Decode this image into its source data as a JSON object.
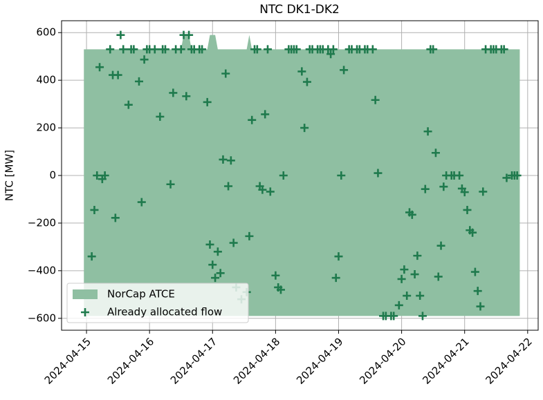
{
  "chart_data": {
    "type": "area",
    "title": "NTC DK1-DK2",
    "ylabel": "NTC [MW]",
    "xlim": [
      "2024-04-14 14:30",
      "2024-04-22 04:00"
    ],
    "xticks": [
      "2024-04-15",
      "2024-04-16",
      "2024-04-17",
      "2024-04-18",
      "2024-04-19",
      "2024-04-20",
      "2024-04-21",
      "2024-04-22"
    ],
    "ylim": [
      -650,
      650
    ],
    "yticks": [
      {
        "value": -600,
        "label": "−600"
      },
      {
        "value": -400,
        "label": "−400"
      },
      {
        "value": -200,
        "label": "−200"
      },
      0,
      200,
      400,
      600
    ],
    "grid": true,
    "legend": "lower left",
    "series": [
      {
        "name": "NorCap ATCE",
        "type": "area",
        "color": "#8fbfa2",
        "x": [
          "2024-04-14 23:00",
          "2024-04-16 12:00",
          "2024-04-16 13:00",
          "2024-04-16 15:00",
          "2024-04-16 16:00",
          "2024-04-16 22:00",
          "2024-04-16 23:00",
          "2024-04-17 01:00",
          "2024-04-17 02:00",
          "2024-04-17 13:00",
          "2024-04-17 14:00",
          "2024-04-17 15:00",
          "2024-04-21 21:00"
        ],
        "upper": [
          530,
          530,
          590,
          590,
          530,
          530,
          590,
          590,
          530,
          530,
          590,
          530,
          530
        ],
        "lower": [
          -590,
          -590,
          -590,
          -590,
          -590,
          -590,
          -590,
          -590,
          -590,
          -590,
          -590,
          -590,
          -590
        ]
      },
      {
        "name": "Already allocated flow",
        "type": "scatter",
        "color": "#1f7a4d",
        "x": [
          "2024-04-15 02:00",
          "2024-04-15 03:00",
          "2024-04-15 04:00",
          "2024-04-15 05:00",
          "2024-04-15 06:00",
          "2024-04-15 07:00",
          "2024-04-15 09:00",
          "2024-04-15 10:00",
          "2024-04-15 11:00",
          "2024-04-15 12:00",
          "2024-04-15 13:00",
          "2024-04-15 14:00",
          "2024-04-15 16:00",
          "2024-04-15 17:00",
          "2024-04-15 18:00",
          "2024-04-15 20:00",
          "2024-04-15 21:00",
          "2024-04-15 22:00",
          "2024-04-15 23:00",
          "2024-04-16 00:00",
          "2024-04-16 02:00",
          "2024-04-16 04:00",
          "2024-04-16 05:00",
          "2024-04-16 06:00",
          "2024-04-16 08:00",
          "2024-04-16 09:00",
          "2024-04-16 10:00",
          "2024-04-16 12:00",
          "2024-04-16 13:00",
          "2024-04-16 14:00",
          "2024-04-16 15:00",
          "2024-04-16 16:00",
          "2024-04-16 17:00",
          "2024-04-16 19:00",
          "2024-04-16 20:00",
          "2024-04-16 22:00",
          "2024-04-16 23:00",
          "2024-04-17 00:00",
          "2024-04-17 01:00",
          "2024-04-17 02:00",
          "2024-04-17 03:00",
          "2024-04-17 04:00",
          "2024-04-17 05:00",
          "2024-04-17 06:00",
          "2024-04-17 07:00",
          "2024-04-17 08:00",
          "2024-04-17 09:00",
          "2024-04-17 11:00",
          "2024-04-17 13:00",
          "2024-04-17 14:00",
          "2024-04-17 15:00",
          "2024-04-17 16:00",
          "2024-04-17 17:00",
          "2024-04-17 18:00",
          "2024-04-17 19:00",
          "2024-04-17 20:00",
          "2024-04-17 21:00",
          "2024-04-17 22:00",
          "2024-04-18 00:00",
          "2024-04-18 01:00",
          "2024-04-18 02:00",
          "2024-04-18 03:00",
          "2024-04-18 05:00",
          "2024-04-18 06:00",
          "2024-04-18 07:00",
          "2024-04-18 08:00",
          "2024-04-18 10:00",
          "2024-04-18 11:00",
          "2024-04-18 12:00",
          "2024-04-18 13:00",
          "2024-04-18 14:00",
          "2024-04-18 16:00",
          "2024-04-18 17:00",
          "2024-04-18 18:00",
          "2024-04-18 20:00",
          "2024-04-18 21:00",
          "2024-04-18 22:00",
          "2024-04-18 23:00",
          "2024-04-19 00:00",
          "2024-04-19 01:00",
          "2024-04-19 02:00",
          "2024-04-19 04:00",
          "2024-04-19 05:00",
          "2024-04-19 07:00",
          "2024-04-19 08:00",
          "2024-04-19 10:00",
          "2024-04-19 11:00",
          "2024-04-19 13:00",
          "2024-04-19 14:00",
          "2024-04-19 15:00",
          "2024-04-19 17:00",
          "2024-04-19 18:00",
          "2024-04-19 20:00",
          "2024-04-19 21:00",
          "2024-04-19 23:00",
          "2024-04-20 00:00",
          "2024-04-20 01:00",
          "2024-04-20 02:00",
          "2024-04-20 03:00",
          "2024-04-20 04:00",
          "2024-04-20 05:00",
          "2024-04-20 06:00",
          "2024-04-20 07:00",
          "2024-04-20 08:00",
          "2024-04-20 09:00",
          "2024-04-20 10:00",
          "2024-04-20 11:00",
          "2024-04-20 12:00",
          "2024-04-20 13:00",
          "2024-04-20 14:00",
          "2024-04-20 15:00",
          "2024-04-20 16:00",
          "2024-04-20 17:00",
          "2024-04-20 19:00",
          "2024-04-20 20:00",
          "2024-04-20 22:00",
          "2024-04-20 23:00",
          "2024-04-21 00:00",
          "2024-04-21 01:00",
          "2024-04-21 02:00",
          "2024-04-21 03:00",
          "2024-04-21 04:00",
          "2024-04-21 05:00",
          "2024-04-21 06:00",
          "2024-04-21 07:00",
          "2024-04-21 08:00",
          "2024-04-21 10:00",
          "2024-04-21 11:00",
          "2024-04-21 12:00",
          "2024-04-21 14:00",
          "2024-04-21 15:00",
          "2024-04-21 16:00",
          "2024-04-21 18:00",
          "2024-04-21 19:00",
          "2024-04-21 20:00"
        ],
        "values": [
          -340,
          -145,
          0,
          455,
          -15,
          0,
          530,
          422,
          -178,
          422,
          590,
          530,
          297,
          530,
          530,
          395,
          -112,
          487,
          530,
          530,
          530,
          247,
          530,
          530,
          -37,
          347,
          530,
          530,
          590,
          333,
          590,
          530,
          530,
          530,
          530,
          308,
          -290,
          -375,
          -430,
          -320,
          -410,
          67,
          428,
          -45,
          63,
          -283,
          -470,
          -520,
          -490,
          -255,
          233,
          530,
          530,
          -45,
          -60,
          257,
          530,
          -68,
          -420,
          -470,
          -480,
          0,
          530,
          530,
          530,
          530,
          437,
          200,
          393,
          530,
          530,
          530,
          530,
          530,
          530,
          510,
          530,
          -430,
          -340,
          0,
          443,
          530,
          530,
          530,
          530,
          530,
          530,
          530,
          317,
          10,
          -590,
          -590,
          -590,
          -590,
          -545,
          -435,
          -395,
          -505,
          -155,
          -165,
          -415,
          -337,
          -505,
          -590,
          -57,
          185,
          530,
          530,
          95,
          -425,
          -295,
          -47,
          0,
          0,
          0,
          0,
          -55,
          -70,
          -145,
          -230,
          -240,
          -405,
          -485,
          -550,
          -68,
          530,
          530,
          530,
          530,
          530,
          530,
          -10,
          0,
          0,
          0
        ]
      }
    ]
  }
}
